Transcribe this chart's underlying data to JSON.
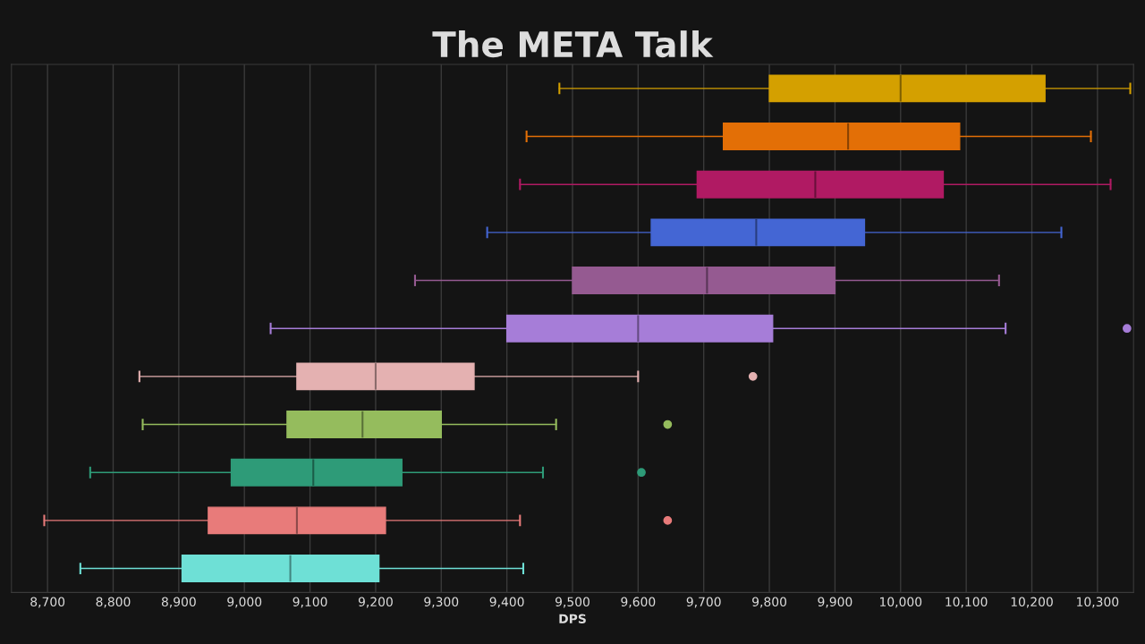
{
  "chart_data": {
    "type": "box",
    "title": "The META Talk",
    "xlabel": "DPS",
    "orientation": "horizontal",
    "categories": [
      null,
      null,
      null,
      null,
      null,
      null,
      null,
      null,
      null,
      null,
      null
    ],
    "colors": [
      "#d4a000",
      "#e36f06",
      "#b01a63",
      "#4466d4",
      "#955a91",
      "#a67dd8",
      "#e4b1b1",
      "#95bc5d",
      "#2e9b78",
      "#e87b7a",
      "#6ee0d6"
    ],
    "boxes": [
      {
        "low": 9480,
        "q1": 9800,
        "median": 10000,
        "q3": 10220,
        "high": 10350
      },
      {
        "low": 9430,
        "q1": 9730,
        "median": 9920,
        "q3": 10090,
        "high": 10290
      },
      {
        "low": 9420,
        "q1": 9690,
        "median": 9870,
        "q3": 10065,
        "high": 10320
      },
      {
        "low": 9370,
        "q1": 9620,
        "median": 9780,
        "q3": 9945,
        "high": 10245
      },
      {
        "low": 9260,
        "q1": 9500,
        "median": 9705,
        "q3": 9900,
        "high": 10150
      },
      {
        "low": 9040,
        "q1": 9400,
        "median": 9600,
        "q3": 9805,
        "high": 10160,
        "outliers": [
          10345
        ]
      },
      {
        "low": 8840,
        "q1": 9080,
        "median": 9200,
        "q3": 9350,
        "high": 9600,
        "outliers": [
          9775
        ]
      },
      {
        "low": 8845,
        "q1": 9065,
        "median": 9180,
        "q3": 9300,
        "high": 9475,
        "outliers": [
          9645
        ]
      },
      {
        "low": 8765,
        "q1": 8980,
        "median": 9105,
        "q3": 9240,
        "high": 9455,
        "outliers": [
          9605
        ]
      },
      {
        "low": 8695,
        "q1": 8945,
        "median": 9080,
        "q3": 9215,
        "high": 9420,
        "outliers": [
          9645
        ]
      },
      {
        "low": 8750,
        "q1": 8905,
        "median": 9070,
        "q3": 9205,
        "high": 9425
      }
    ],
    "xlim": [
      8645,
      10355
    ],
    "xticks": [
      {
        "value": 8700,
        "label": "8,700"
      },
      {
        "value": 8800,
        "label": "8,800"
      },
      {
        "value": 8900,
        "label": "8,900"
      },
      {
        "value": 9000,
        "label": "9,000"
      },
      {
        "value": 9100,
        "label": "9,100"
      },
      {
        "value": 9200,
        "label": "9,200"
      },
      {
        "value": 9300,
        "label": "9,300"
      },
      {
        "value": 9400,
        "label": "9,400"
      },
      {
        "value": 9500,
        "label": "9,500"
      },
      {
        "value": 9600,
        "label": "9,600"
      },
      {
        "value": 9700,
        "label": "9,700"
      },
      {
        "value": 9800,
        "label": "9,800"
      },
      {
        "value": 9900,
        "label": "9,900"
      },
      {
        "value": 10000,
        "label": "10,000"
      },
      {
        "value": 10100,
        "label": "10,100"
      },
      {
        "value": 10200,
        "label": "10,200"
      },
      {
        "value": 10300,
        "label": "10,300"
      }
    ],
    "grid": "x"
  }
}
